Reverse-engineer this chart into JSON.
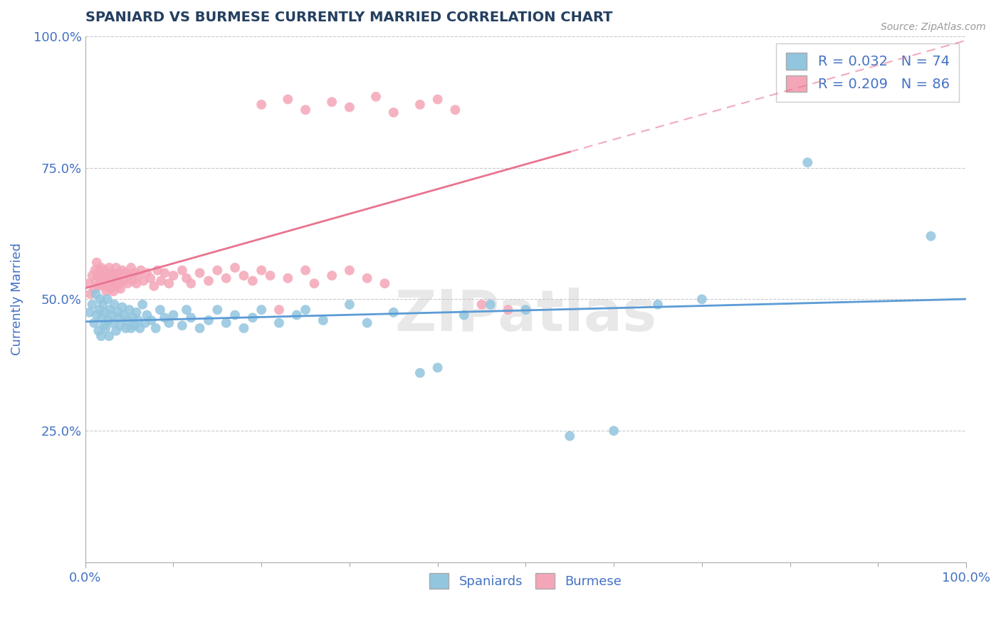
{
  "title": "SPANIARD VS BURMESE CURRENTLY MARRIED CORRELATION CHART",
  "source": "Source: ZipAtlas.com",
  "ylabel": "Currently Married",
  "xlim": [
    0.0,
    1.0
  ],
  "ylim": [
    0.0,
    1.0
  ],
  "watermark": "ZIPatlas",
  "spaniards_R": 0.032,
  "spaniards_N": 74,
  "burmese_R": 0.209,
  "burmese_N": 86,
  "spaniards_color": "#92C5DE",
  "burmese_color": "#F4A6B8",
  "spaniards_line_color": "#5B9BD5",
  "burmese_line_color": "#E8748F",
  "title_color": "#243F60",
  "axis_label_color": "#4472C4",
  "spaniards_x": [
    0.005,
    0.008,
    0.01,
    0.012,
    0.013,
    0.015,
    0.016,
    0.017,
    0.018,
    0.019,
    0.02,
    0.021,
    0.022,
    0.023,
    0.025,
    0.026,
    0.027,
    0.028,
    0.03,
    0.031,
    0.033,
    0.035,
    0.037,
    0.038,
    0.04,
    0.042,
    0.044,
    0.046,
    0.048,
    0.05,
    0.052,
    0.054,
    0.056,
    0.058,
    0.06,
    0.062,
    0.065,
    0.068,
    0.07,
    0.075,
    0.08,
    0.085,
    0.09,
    0.095,
    0.1,
    0.11,
    0.115,
    0.12,
    0.13,
    0.14,
    0.15,
    0.16,
    0.17,
    0.18,
    0.19,
    0.2,
    0.22,
    0.24,
    0.25,
    0.27,
    0.3,
    0.32,
    0.35,
    0.38,
    0.4,
    0.43,
    0.46,
    0.5,
    0.55,
    0.6,
    0.65,
    0.7,
    0.82,
    0.96
  ],
  "spaniards_y": [
    0.475,
    0.49,
    0.455,
    0.51,
    0.47,
    0.44,
    0.48,
    0.5,
    0.43,
    0.465,
    0.49,
    0.45,
    0.475,
    0.445,
    0.5,
    0.46,
    0.43,
    0.48,
    0.47,
    0.455,
    0.49,
    0.44,
    0.475,
    0.465,
    0.45,
    0.485,
    0.47,
    0.445,
    0.46,
    0.48,
    0.445,
    0.465,
    0.45,
    0.475,
    0.46,
    0.445,
    0.49,
    0.455,
    0.47,
    0.46,
    0.445,
    0.48,
    0.465,
    0.455,
    0.47,
    0.45,
    0.48,
    0.465,
    0.445,
    0.46,
    0.48,
    0.455,
    0.47,
    0.445,
    0.465,
    0.48,
    0.455,
    0.47,
    0.48,
    0.46,
    0.49,
    0.455,
    0.475,
    0.36,
    0.37,
    0.47,
    0.49,
    0.48,
    0.24,
    0.25,
    0.49,
    0.5,
    0.76,
    0.62
  ],
  "burmese_x": [
    0.004,
    0.006,
    0.008,
    0.01,
    0.011,
    0.012,
    0.013,
    0.014,
    0.015,
    0.016,
    0.017,
    0.018,
    0.019,
    0.02,
    0.021,
    0.022,
    0.023,
    0.024,
    0.025,
    0.026,
    0.027,
    0.028,
    0.029,
    0.03,
    0.031,
    0.032,
    0.033,
    0.034,
    0.035,
    0.036,
    0.037,
    0.038,
    0.039,
    0.04,
    0.042,
    0.044,
    0.046,
    0.048,
    0.05,
    0.052,
    0.054,
    0.056,
    0.058,
    0.06,
    0.063,
    0.066,
    0.07,
    0.074,
    0.078,
    0.082,
    0.086,
    0.09,
    0.095,
    0.1,
    0.11,
    0.115,
    0.12,
    0.13,
    0.14,
    0.15,
    0.16,
    0.17,
    0.18,
    0.19,
    0.2,
    0.21,
    0.22,
    0.23,
    0.25,
    0.26,
    0.28,
    0.3,
    0.32,
    0.34,
    0.2,
    0.23,
    0.25,
    0.28,
    0.3,
    0.33,
    0.35,
    0.38,
    0.4,
    0.42,
    0.45,
    0.48
  ],
  "burmese_y": [
    0.53,
    0.51,
    0.545,
    0.52,
    0.555,
    0.535,
    0.57,
    0.545,
    0.525,
    0.555,
    0.54,
    0.56,
    0.53,
    0.545,
    0.525,
    0.555,
    0.535,
    0.515,
    0.545,
    0.53,
    0.56,
    0.54,
    0.52,
    0.55,
    0.535,
    0.515,
    0.545,
    0.53,
    0.56,
    0.54,
    0.525,
    0.55,
    0.535,
    0.52,
    0.555,
    0.535,
    0.55,
    0.53,
    0.545,
    0.56,
    0.535,
    0.55,
    0.53,
    0.545,
    0.555,
    0.535,
    0.55,
    0.54,
    0.525,
    0.555,
    0.535,
    0.55,
    0.53,
    0.545,
    0.555,
    0.54,
    0.53,
    0.55,
    0.535,
    0.555,
    0.54,
    0.56,
    0.545,
    0.535,
    0.555,
    0.545,
    0.48,
    0.54,
    0.555,
    0.53,
    0.545,
    0.555,
    0.54,
    0.53,
    0.87,
    0.88,
    0.86,
    0.875,
    0.865,
    0.885,
    0.855,
    0.87,
    0.88,
    0.86,
    0.49,
    0.48
  ]
}
